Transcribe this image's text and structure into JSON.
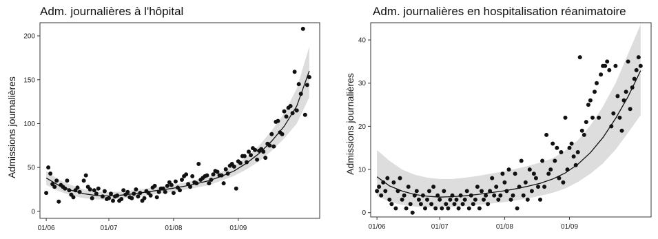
{
  "chart_data": [
    {
      "type": "scatter",
      "title": "Adm. journalières à l'hôpital",
      "xlabel": "",
      "ylabel": "Admissions journalières",
      "x_tick_labels": [
        "01/06",
        "01/07",
        "01/08",
        "01/09"
      ],
      "x_ticks": [
        0,
        30,
        61,
        92
      ],
      "xlim": [
        -3,
        131
      ],
      "y_ticks": [
        0,
        50,
        100,
        150,
        200
      ],
      "ylim": [
        -8,
        215
      ],
      "grid": false,
      "legend": "none",
      "colors": {
        "points": "#111111",
        "fit": "#111111",
        "band": "#b4b4b4"
      },
      "series": [
        {
          "kind": "points",
          "x": [
            0,
            1,
            2,
            3,
            4,
            5,
            6,
            7,
            8,
            9,
            10,
            11,
            12,
            13,
            14,
            15,
            16,
            18,
            19,
            20,
            21,
            22,
            23,
            24,
            25,
            27,
            28,
            29,
            30,
            31,
            32,
            33,
            34,
            35,
            36,
            37,
            38,
            39,
            40,
            41,
            42,
            43,
            44,
            45,
            46,
            47,
            48,
            49,
            50,
            51,
            52,
            53,
            54,
            55,
            56,
            57,
            58,
            59,
            60,
            61,
            62,
            63,
            64,
            65,
            66,
            67,
            68,
            69,
            70,
            71,
            72,
            73,
            74,
            75,
            76,
            77,
            78,
            79,
            80,
            81,
            82,
            83,
            84,
            85,
            86,
            87,
            88,
            89,
            90,
            91,
            92,
            93,
            94,
            95,
            96,
            97,
            98,
            99,
            100,
            101,
            102,
            103,
            104,
            105,
            106,
            107,
            108,
            109,
            110,
            111,
            112,
            113,
            114,
            115,
            116,
            117,
            118,
            119,
            120,
            121,
            122,
            123,
            124,
            125,
            126
          ],
          "y": [
            21,
            50,
            43,
            31,
            28,
            35,
            11,
            30,
            28,
            26,
            35,
            24,
            19,
            16,
            24,
            27,
            22,
            35,
            41,
            28,
            25,
            15,
            24,
            20,
            26,
            17,
            23,
            14,
            15,
            20,
            12,
            17,
            18,
            12,
            14,
            24,
            19,
            22,
            16,
            15,
            20,
            25,
            17,
            21,
            12,
            15,
            23,
            21,
            18,
            27,
            29,
            16,
            22,
            26,
            26,
            22,
            29,
            33,
            30,
            21,
            34,
            27,
            24,
            36,
            40,
            42,
            31,
            28,
            40,
            33,
            32,
            54,
            36,
            38,
            40,
            41,
            32,
            36,
            42,
            46,
            45,
            41,
            41,
            32,
            48,
            43,
            52,
            54,
            51,
            26,
            57,
            55,
            63,
            63,
            56,
            68,
            64,
            72,
            70,
            59,
            69,
            71,
            68,
            61,
            77,
            75,
            88,
            74,
            102,
            103,
            90,
            88,
            114,
            108,
            118,
            120,
            112,
            159,
            115,
            145,
            134,
            208,
            110,
            144,
            153
          ]
        },
        {
          "kind": "fit",
          "x": [
            0,
            6,
            12,
            18,
            24,
            30,
            36,
            42,
            48,
            54,
            60,
            66,
            72,
            78,
            84,
            90,
            96,
            102,
            108,
            114,
            120,
            126
          ],
          "y": [
            38,
            29.5,
            24,
            20,
            18,
            17.5,
            18.5,
            20,
            22,
            24,
            26,
            28.5,
            31.5,
            35,
            40,
            46,
            55,
            66,
            80,
            97,
            120,
            160
          ],
          "lower": [
            30,
            23,
            18,
            15,
            13.5,
            13.5,
            14.5,
            16,
            18,
            20,
            22,
            24.5,
            27,
            30,
            35,
            40.5,
            48,
            57,
            69,
            83,
            100,
            130
          ],
          "upper": [
            46,
            36,
            30,
            25,
            22.5,
            22,
            22.5,
            24,
            26,
            28,
            30,
            32.5,
            36,
            40,
            45,
            52,
            62,
            75,
            92,
            112,
            140,
            188
          ]
        }
      ]
    },
    {
      "type": "scatter",
      "title": "Adm. journalières en hospitalisation réanimatoire",
      "xlabel": "",
      "ylabel": "Admissions journalières",
      "x_tick_labels": [
        "01/06",
        "01/07",
        "01/08",
        "01/09"
      ],
      "x_ticks": [
        0,
        30,
        61,
        92
      ],
      "xlim": [
        -3,
        131
      ],
      "y_ticks": [
        0,
        10,
        20,
        30,
        40
      ],
      "ylim": [
        -1,
        44
      ],
      "grid": false,
      "legend": "none",
      "colors": {
        "points": "#111111",
        "fit": "#111111",
        "band": "#b4b4b4"
      },
      "series": [
        {
          "kind": "points",
          "x": [
            0,
            1,
            2,
            3,
            4,
            5,
            6,
            7,
            8,
            9,
            10,
            11,
            12,
            13,
            14,
            15,
            16,
            17,
            18,
            19,
            20,
            21,
            22,
            23,
            24,
            25,
            26,
            27,
            28,
            29,
            30,
            31,
            32,
            33,
            34,
            35,
            36,
            37,
            38,
            39,
            40,
            41,
            42,
            43,
            44,
            45,
            46,
            47,
            48,
            49,
            50,
            51,
            52,
            53,
            54,
            55,
            56,
            57,
            58,
            59,
            60,
            61,
            62,
            63,
            64,
            65,
            66,
            67,
            68,
            69,
            70,
            71,
            72,
            73,
            74,
            75,
            76,
            77,
            78,
            79,
            80,
            81,
            82,
            83,
            84,
            85,
            86,
            87,
            88,
            89,
            90,
            91,
            92,
            93,
            94,
            95,
            96,
            97,
            98,
            99,
            100,
            101,
            102,
            103,
            104,
            105,
            106,
            107,
            108,
            109,
            110,
            111,
            112,
            113,
            114,
            115,
            116,
            117,
            118,
            119,
            120,
            121,
            122,
            123,
            124,
            125,
            126
          ],
          "y": [
            5,
            6,
            4,
            7,
            5,
            8,
            3,
            2,
            7,
            1,
            5,
            8,
            3,
            4,
            1,
            6,
            2,
            0,
            4,
            5,
            3,
            2,
            4,
            1,
            3,
            5,
            2,
            6,
            1,
            4,
            3,
            1,
            5,
            2,
            1,
            3,
            4,
            2,
            3,
            1,
            4,
            2,
            3,
            5,
            1,
            4,
            2,
            3,
            6,
            1,
            5,
            3,
            4,
            2,
            5,
            8,
            4,
            6,
            3,
            4,
            9,
            7,
            5,
            10,
            3,
            4,
            9,
            1,
            6,
            12,
            4,
            7,
            3,
            10,
            5,
            9,
            8,
            6,
            3,
            12,
            6,
            18,
            9,
            10,
            16,
            12,
            15,
            8,
            14,
            7,
            22,
            10,
            15,
            16,
            13,
            11,
            14,
            36,
            19,
            18,
            21,
            25,
            26,
            22,
            28,
            30,
            22,
            32,
            34,
            34,
            35,
            33,
            20,
            23,
            34,
            27,
            22,
            19,
            26,
            28,
            35,
            24,
            29,
            31,
            33,
            36,
            34
          ]
        },
        {
          "kind": "fit",
          "x": [
            0,
            6,
            12,
            18,
            24,
            30,
            36,
            42,
            48,
            54,
            60,
            66,
            72,
            78,
            84,
            90,
            96,
            102,
            108,
            114,
            120,
            126
          ],
          "y": [
            8.3,
            6.2,
            5,
            4.2,
            3.8,
            3.6,
            3.7,
            3.9,
            4.2,
            4.6,
            5,
            5.5,
            6.1,
            6.8,
            7.8,
            9.2,
            11.2,
            13.9,
            17.4,
            21.8,
            26.9,
            32.9
          ],
          "lower": [
            3.9,
            2.5,
            1.8,
            1.4,
            1.2,
            1.2,
            1.3,
            1.5,
            1.8,
            2.1,
            2.4,
            2.8,
            3.3,
            3.9,
            4.6,
            5.6,
            7.1,
            9,
            11.4,
            14.6,
            18.5,
            22.6
          ],
          "upper": [
            14.5,
            12,
            10,
            8.8,
            8.1,
            7.8,
            7.8,
            8.1,
            8.5,
            9,
            9.5,
            10.1,
            10.8,
            11.6,
            12.6,
            14.4,
            16.8,
            20.2,
            24.6,
            30,
            36.8,
            43.6
          ]
        }
      ]
    }
  ]
}
